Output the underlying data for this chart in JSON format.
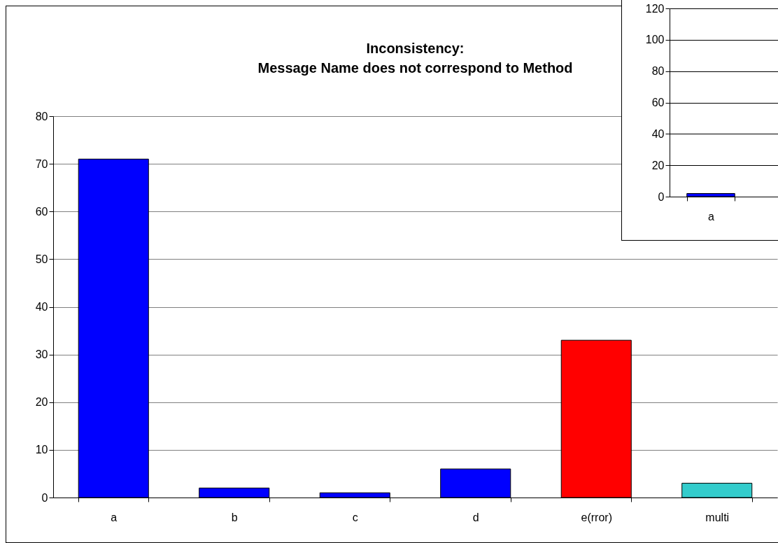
{
  "chart_data": [
    {
      "type": "bar",
      "title": "Inconsistency:\nMessage Name does not correspond to Method",
      "categories": [
        "a",
        "b",
        "c",
        "d",
        "e(rror)",
        "multi"
      ],
      "values": [
        71,
        2,
        1,
        6,
        33,
        3
      ],
      "colors": [
        "#0000ff",
        "#0000ff",
        "#0000ff",
        "#0000ff",
        "#ff0000",
        "#33cccc"
      ],
      "ylim": [
        0,
        80
      ],
      "yticks": [
        0,
        10,
        20,
        30,
        40,
        50,
        60,
        70,
        80
      ],
      "grid": "y"
    },
    {
      "type": "bar",
      "categories": [
        "a",
        null
      ],
      "values": [
        2,
        null
      ],
      "color": "#0000ff",
      "ylim": [
        0,
        120
      ],
      "yticks": [
        0,
        20,
        40,
        60,
        80,
        100,
        120
      ],
      "grid": "y"
    }
  ]
}
